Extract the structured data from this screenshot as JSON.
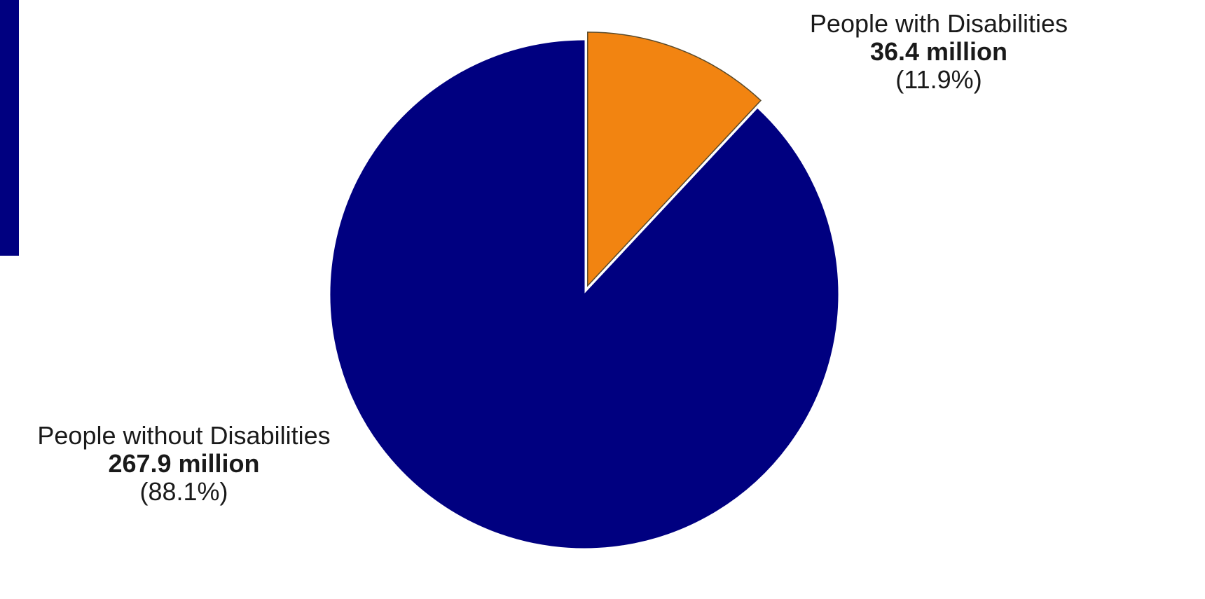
{
  "chart_data": {
    "type": "pie",
    "title": "",
    "start_angle_deg": 0,
    "direction": "clockwise",
    "slices": [
      {
        "name": "People with Disabilities",
        "value": 36.4,
        "value_label": "36.4 million",
        "percent": 11.9,
        "percent_label": "(11.9%)",
        "color": "#F28411",
        "exploded": true
      },
      {
        "name": "People without Disabilities",
        "value": 267.9,
        "value_label": "267.9 million",
        "percent": 88.1,
        "percent_label": "(88.1%)",
        "color": "#000080",
        "exploded": false
      }
    ],
    "legend": "none"
  },
  "colors": {
    "accent_bar": "#000080",
    "slice_border": "#5a4a2a"
  }
}
